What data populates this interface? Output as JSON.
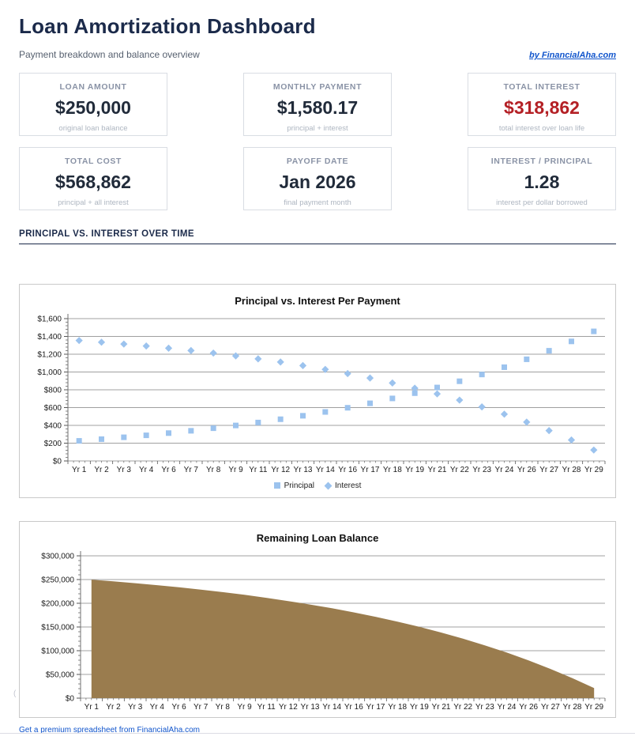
{
  "page": {
    "title": "Loan Amortization Dashboard",
    "subtitle": "Payment breakdown and balance overview",
    "byline": "by FinancialAha.com",
    "section_header": "PRINCIPAL VS. INTEREST OVER TIME",
    "footer_link": "Get a premium spreadsheet from FinancialAha.com",
    "stray_character": "("
  },
  "colors": {
    "heading_navy": "#1b2a4a",
    "stat_value": "#212b3a",
    "alert_red": "#b42025",
    "link_blue": "#1155cc",
    "marker_blue": "#9cc3ee",
    "area_brown": "#9a7c4e",
    "gridline_gray": "#a0a0a0"
  },
  "stats": [
    {
      "label": "LOAN AMOUNT",
      "value": "$250,000",
      "sub": "original loan balance"
    },
    {
      "label": "MONTHLY PAYMENT",
      "value": "$1,580.17",
      "sub": "principal + interest"
    },
    {
      "label": "TOTAL INTEREST",
      "value": "$318,862",
      "sub": "total interest over loan life",
      "value_color": "#b42025"
    },
    {
      "label": "TOTAL COST",
      "value": "$568,862",
      "sub": "principal + all interest"
    },
    {
      "label": "PAYOFF DATE",
      "value": "Jan 2026",
      "sub": "final payment month"
    },
    {
      "label": "INTEREST / PRINCIPAL",
      "value": "1.28",
      "sub": "interest per dollar borrowed"
    }
  ],
  "chart_data": [
    {
      "type": "scatter",
      "title": "Principal vs. Interest Per Payment",
      "categories": [
        "Yr 1",
        "Yr 2",
        "Yr 3",
        "Yr 4",
        "Yr 6",
        "Yr 7",
        "Yr 8",
        "Yr 9",
        "Yr 11",
        "Yr 12",
        "Yr 13",
        "Yr 14",
        "Yr 16",
        "Yr 17",
        "Yr 18",
        "Yr 19",
        "Yr 21",
        "Yr 22",
        "Yr 23",
        "Yr 24",
        "Yr 26",
        "Yr 27",
        "Yr 28",
        "Yr 29"
      ],
      "series": [
        {
          "name": "Principal",
          "marker": "square",
          "color": "#9cc3ee",
          "values": [
            226,
            245,
            266,
            288,
            313,
            339,
            368,
            399,
            432,
            469,
            508,
            551,
            598,
            648,
            703,
            762,
            826,
            896,
            972,
            1054,
            1143,
            1239,
            1344,
            1457
          ]
        },
        {
          "name": "Interest",
          "marker": "diamond",
          "color": "#9cc3ee",
          "values": [
            1354,
            1335,
            1314,
            1292,
            1268,
            1241,
            1213,
            1181,
            1148,
            1112,
            1072,
            1029,
            982,
            932,
            877,
            818,
            754,
            684,
            608,
            526,
            437,
            341,
            236,
            123
          ]
        }
      ],
      "ylim": [
        0,
        1600
      ],
      "ytick_step": 200,
      "ytick_prefix": "$",
      "grid": true,
      "legend_position": "bottom"
    },
    {
      "type": "area",
      "title": "Remaining Loan Balance",
      "categories": [
        "Yr 1",
        "Yr 2",
        "Yr 3",
        "Yr 4",
        "Yr 6",
        "Yr 7",
        "Yr 8",
        "Yr 9",
        "Yr 11",
        "Yr 12",
        "Yr 13",
        "Yr 14",
        "Yr 16",
        "Yr 17",
        "Yr 18",
        "Yr 19",
        "Yr 21",
        "Yr 22",
        "Yr 23",
        "Yr 24",
        "Yr 26",
        "Yr 27",
        "Yr 28",
        "Yr 29"
      ],
      "series": [
        {
          "name": "Balance",
          "color": "#9a7c4e",
          "values": [
            249774,
            246234,
            242392,
            238231,
            233710,
            228819,
            223511,
            217750,
            211509,
            204739,
            197396,
            189432,
            180803,
            171440,
            161282,
            150282,
            138344,
            125396,
            111350,
            96128,
            79613,
            61702,
            42278,
            21226
          ]
        }
      ],
      "ylim": [
        0,
        300000
      ],
      "ytick_step": 50000,
      "ytick_prefix": "$",
      "grid": true,
      "legend_position": "none"
    }
  ]
}
